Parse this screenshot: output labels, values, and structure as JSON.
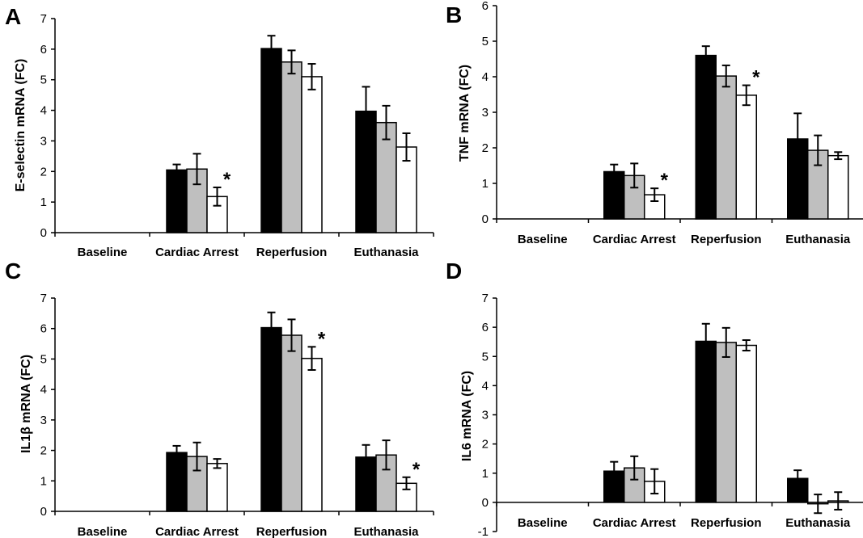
{
  "chart_data": [
    {
      "type": "bar",
      "panel_label": "A",
      "ylabel": "E-selectin mRNA (FC)",
      "ylim": [
        0,
        7
      ],
      "yticks": [
        0,
        1,
        2,
        3,
        4,
        5,
        6,
        7
      ],
      "categories": [
        "Baseline",
        "Cardiac Arrest",
        "Reperfusion",
        "Euthanasia"
      ],
      "series": [
        {
          "color": "#000000",
          "values": [
            0,
            2.05,
            6.02,
            3.97
          ],
          "errors": [
            0,
            0.18,
            0.42,
            0.8
          ]
        },
        {
          "color": "#bfbfbf",
          "values": [
            0,
            2.08,
            5.58,
            3.6
          ],
          "errors": [
            0,
            0.5,
            0.38,
            0.55
          ]
        },
        {
          "color": "#ffffff",
          "values": [
            0,
            1.18,
            5.1,
            2.8
          ],
          "errors": [
            0,
            0.3,
            0.42,
            0.45
          ]
        }
      ],
      "annotations": [
        {
          "text": "*",
          "category": 1,
          "series": 2
        }
      ]
    },
    {
      "type": "bar",
      "panel_label": "B",
      "ylabel": "TNF mRNA (FC)",
      "ylim": [
        0,
        6
      ],
      "yticks": [
        0,
        1,
        2,
        3,
        4,
        5,
        6
      ],
      "categories": [
        "Baseline",
        "Cardiac Arrest",
        "Reperfusion",
        "Euthanasia"
      ],
      "series": [
        {
          "color": "#000000",
          "values": [
            0,
            1.33,
            4.6,
            2.25
          ],
          "errors": [
            0,
            0.2,
            0.26,
            0.72
          ]
        },
        {
          "color": "#bfbfbf",
          "values": [
            0,
            1.22,
            4.02,
            1.93
          ],
          "errors": [
            0,
            0.34,
            0.3,
            0.42
          ]
        },
        {
          "color": "#ffffff",
          "values": [
            0,
            0.68,
            3.48,
            1.78
          ],
          "errors": [
            0,
            0.18,
            0.28,
            0.1
          ]
        }
      ],
      "annotations": [
        {
          "text": "*",
          "category": 1,
          "series": 2
        },
        {
          "text": "*",
          "category": 2,
          "series": 2
        }
      ]
    },
    {
      "type": "bar",
      "panel_label": "C",
      "ylabel": "IL1β mRNA (FC)",
      "ylim": [
        0,
        7
      ],
      "yticks": [
        0,
        1,
        2,
        3,
        4,
        5,
        6,
        7
      ],
      "categories": [
        "Baseline",
        "Cardiac Arrest",
        "Reperfusion",
        "Euthanasia"
      ],
      "series": [
        {
          "color": "#000000",
          "values": [
            0,
            1.93,
            6.03,
            1.78
          ],
          "errors": [
            0,
            0.22,
            0.5,
            0.4
          ]
        },
        {
          "color": "#bfbfbf",
          "values": [
            0,
            1.8,
            5.78,
            1.85
          ],
          "errors": [
            0,
            0.46,
            0.52,
            0.48
          ]
        },
        {
          "color": "#ffffff",
          "values": [
            0,
            1.57,
            5.02,
            0.92
          ],
          "errors": [
            0,
            0.15,
            0.38,
            0.2
          ]
        }
      ],
      "annotations": [
        {
          "text": "*",
          "category": 2,
          "series": 2
        },
        {
          "text": "*",
          "category": 3,
          "series": 2
        }
      ]
    },
    {
      "type": "bar",
      "panel_label": "D",
      "ylabel": "IL6 mRNA (FC)",
      "ylim": [
        -1,
        7
      ],
      "yticks": [
        -1,
        0,
        1,
        2,
        3,
        4,
        5,
        6,
        7
      ],
      "categories": [
        "Baseline",
        "Cardiac Arrest",
        "Reperfusion",
        "Euthanasia"
      ],
      "series": [
        {
          "color": "#000000",
          "values": [
            0,
            1.07,
            5.52,
            0.82
          ],
          "errors": [
            0,
            0.32,
            0.6,
            0.28
          ]
        },
        {
          "color": "#bfbfbf",
          "values": [
            0,
            1.18,
            5.48,
            -0.05
          ],
          "errors": [
            0,
            0.4,
            0.5,
            0.32
          ]
        },
        {
          "color": "#ffffff",
          "values": [
            0,
            0.72,
            5.38,
            0.05
          ],
          "errors": [
            0,
            0.42,
            0.18,
            0.3
          ]
        }
      ],
      "annotations": []
    }
  ]
}
